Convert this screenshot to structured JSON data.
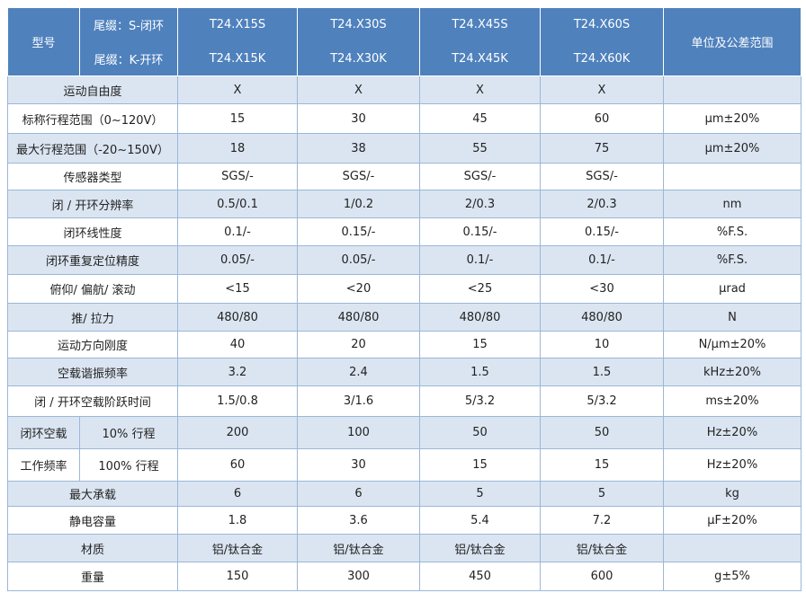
{
  "header": {
    "model_label": "型号",
    "suffix_s": "尾缀：S-闭环",
    "suffix_k": "尾缀：K-开环",
    "models": [
      {
        "s": "T24.X15S",
        "k": "T24.X15K"
      },
      {
        "s": "T24.X30S",
        "k": "T24.X30K"
      },
      {
        "s": "T24.X45S",
        "k": "T24.X45K"
      },
      {
        "s": "T24.X60S",
        "k": "T24.X60K"
      }
    ],
    "unit_header": "单位及公差范围"
  },
  "rows": [
    {
      "label": "运动自由度",
      "values": [
        "X",
        "X",
        "X",
        "X"
      ]
    },
    {
      "label": "标称行程范围（0~120V）",
      "values": [
        "15",
        "30",
        "45",
        "60"
      ],
      "unit": "μm±20%"
    },
    {
      "label": "最大行程范围（-20~150V）",
      "values": [
        "18",
        "38",
        "55",
        "75"
      ],
      "unit": "μm±20%"
    },
    {
      "label": "传感器类型",
      "values": [
        "SGS/-",
        "SGS/-",
        "SGS/-",
        "SGS/-"
      ]
    },
    {
      "label": "闭 / 开环分辨率",
      "values": [
        "0.5/0.1",
        "1/0.2",
        "2/0.3",
        "2/0.3"
      ],
      "unit": "nm"
    },
    {
      "label": "闭环线性度",
      "values": [
        "0.1/-",
        "0.15/-",
        "0.15/-",
        "0.15/-"
      ],
      "unit": "%F.S."
    },
    {
      "label": "闭环重复定位精度",
      "values": [
        "0.05/-",
        "0.05/-",
        "0.1/-",
        "0.1/-"
      ],
      "unit": "%F.S."
    },
    {
      "label": "俯仰/ 偏航/ 滚动",
      "values": [
        "<15",
        "<20",
        "<25",
        "<30"
      ],
      "unit": "μrad"
    },
    {
      "label": "推/ 拉力",
      "values": [
        "480/80",
        "480/80",
        "480/80",
        "480/80"
      ],
      "unit": "N"
    },
    {
      "label": "运动方向刚度",
      "values": [
        "40",
        "20",
        "15",
        "10"
      ],
      "unit": "N/μm±20%"
    },
    {
      "label": "空载谐振频率",
      "values": [
        "3.2",
        "2.4",
        "1.5",
        "1.5"
      ],
      "unit": "kHz±20%"
    },
    {
      "label": "闭 / 开环空载阶跃时间",
      "values": [
        "1.5/0.8",
        "3/1.6",
        "5/3.2",
        "5/3.2"
      ],
      "unit": "ms±20%"
    },
    {
      "label": "闭环空载",
      "sublabel": "10% 行程",
      "values": [
        "200",
        "100",
        "50",
        "50"
      ],
      "unit": "Hz±20%"
    },
    {
      "label": "工作频率",
      "sublabel": "100% 行程",
      "values": [
        "60",
        "30",
        "15",
        "15"
      ],
      "unit": "Hz±20%"
    },
    {
      "label": "最大承载",
      "values": [
        "6",
        "6",
        "5",
        "5"
      ],
      "unit": "kg"
    },
    {
      "label": "静电容量",
      "values": [
        "1.8",
        "3.6",
        "5.4",
        "7.2"
      ],
      "unit": "μF±20%"
    },
    {
      "label": "材质",
      "values": [
        "铝/钛合金",
        "铝/钛合金",
        "铝/钛合金",
        "铝/钛合金"
      ]
    },
    {
      "label": "重量",
      "values": [
        "150",
        "300",
        "450",
        "600"
      ],
      "unit": "g±5%"
    }
  ]
}
